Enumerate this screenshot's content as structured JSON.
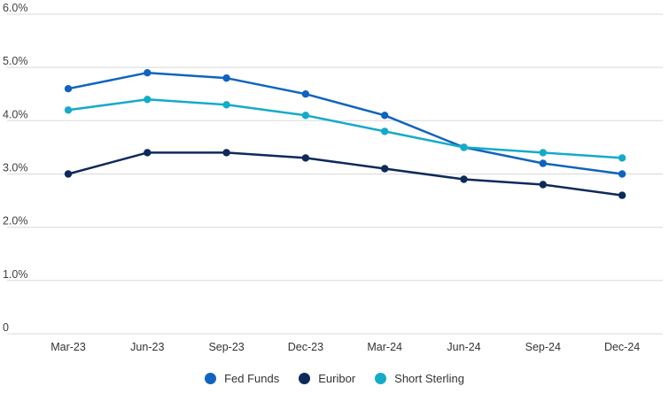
{
  "chart_data": {
    "type": "line",
    "title": "",
    "xlabel": "",
    "ylabel": "",
    "categories": [
      "Mar-23",
      "Jun-23",
      "Sep-23",
      "Dec-23",
      "Mar-24",
      "Jun-24",
      "Sep-24",
      "Dec-24"
    ],
    "series": [
      {
        "name": "Fed Funds",
        "color": "#1064bd",
        "values": [
          4.6,
          4.9,
          4.8,
          4.5,
          4.1,
          3.5,
          3.2,
          3.0
        ]
      },
      {
        "name": "Euribor",
        "color": "#0e2a5a",
        "values": [
          3.0,
          3.4,
          3.4,
          3.3,
          3.1,
          2.9,
          2.8,
          2.6
        ]
      },
      {
        "name": "Short Sterling",
        "color": "#14abc8",
        "values": [
          4.2,
          4.4,
          4.3,
          4.1,
          3.8,
          3.5,
          3.4,
          3.3
        ]
      }
    ],
    "ylim": [
      0,
      6
    ],
    "y_ticks": [
      {
        "value": 6,
        "label": "6.0%"
      },
      {
        "value": 5,
        "label": "5.0%"
      },
      {
        "value": 4,
        "label": "4.0%"
      },
      {
        "value": 3,
        "label": "3.0%"
      },
      {
        "value": 2,
        "label": "2.0%"
      },
      {
        "value": 1,
        "label": "1.0%"
      },
      {
        "value": 0,
        "label": "0"
      }
    ],
    "grid": "horizontal",
    "legend_position": "bottom-center",
    "marker": "circle",
    "gridline_color": "#d9d9d9",
    "axis_text_color": "#404040",
    "legend_text_color": "#333333",
    "background_color": "#ffffff"
  }
}
